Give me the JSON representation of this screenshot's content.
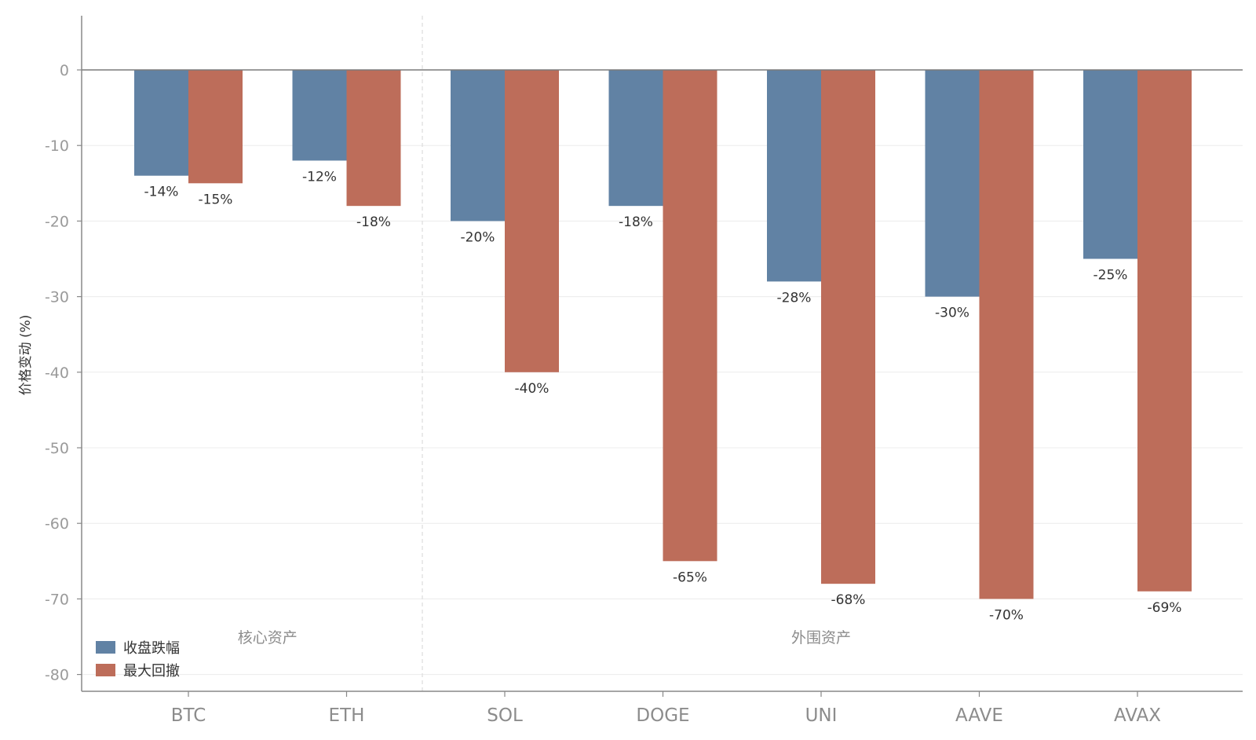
{
  "chart_data": {
    "type": "bar",
    "categories": [
      "BTC",
      "ETH",
      "SOL",
      "DOGE",
      "UNI",
      "AAVE",
      "AVAX"
    ],
    "series": [
      {
        "name": "收盘跌幅",
        "color": "#6182a4",
        "values": [
          -14,
          -12,
          -20,
          -18,
          -28,
          -30,
          -25
        ],
        "labels": [
          "-14%",
          "-12%",
          "-20%",
          "-18%",
          "-28%",
          "-30%",
          "-25%"
        ]
      },
      {
        "name": "最大回撤",
        "color": "#bd6d5a",
        "values": [
          -15,
          -18,
          -40,
          -65,
          -68,
          -70,
          -69
        ],
        "labels": [
          "-15%",
          "-18%",
          "-40%",
          "-65%",
          "-68%",
          "-70%",
          "-69%"
        ]
      }
    ],
    "ylabel": "价格变动 (%)",
    "ylim": [
      -82,
      7
    ],
    "yticks": [
      0,
      -10,
      -20,
      -30,
      -40,
      -50,
      -60,
      -70,
      -80
    ],
    "ytick_labels": [
      "0",
      "-10",
      "-20",
      "-30",
      "-40",
      "-50",
      "-60",
      "-70",
      "-80"
    ],
    "groups": [
      {
        "label": "核心资产",
        "categories": [
          "BTC",
          "ETH"
        ]
      },
      {
        "label": "外围资产",
        "categories": [
          "SOL",
          "DOGE",
          "UNI",
          "AAVE",
          "AVAX"
        ]
      }
    ],
    "grid": true,
    "legend_position": "bottom-left"
  }
}
